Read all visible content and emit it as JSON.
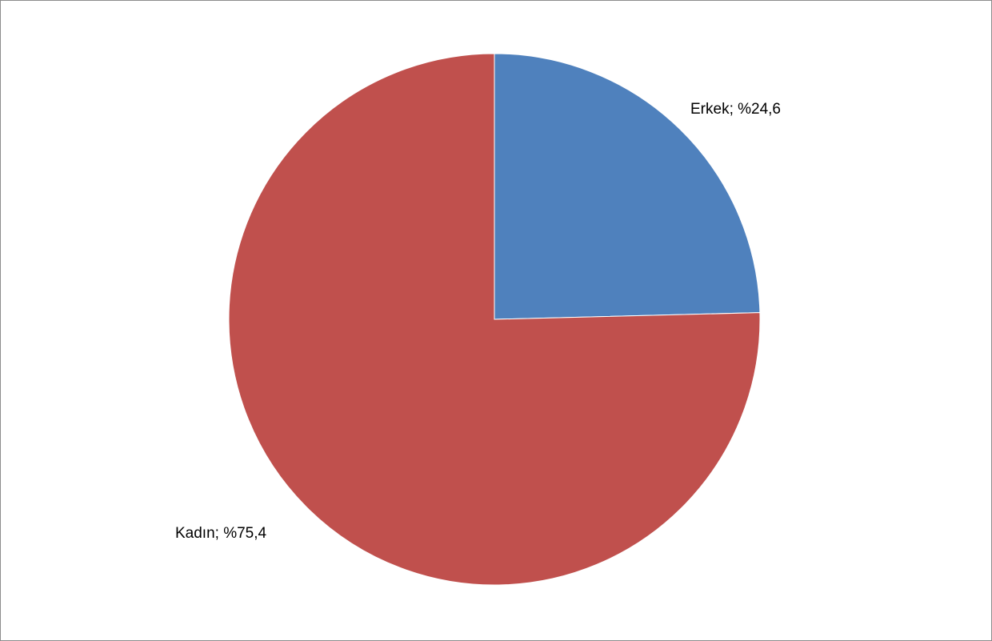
{
  "chart_data": {
    "type": "pie",
    "title": "",
    "start_angle_deg": 0,
    "direction": "clockwise",
    "legend": "none",
    "slices": [
      {
        "name": "Erkek",
        "value": 24.6,
        "label": "Erkek; %24,6",
        "color": "#4F81BD"
      },
      {
        "name": "Kadın",
        "value": 75.4,
        "label": "Kadın; %75,4",
        "color": "#C0504D"
      }
    ]
  }
}
